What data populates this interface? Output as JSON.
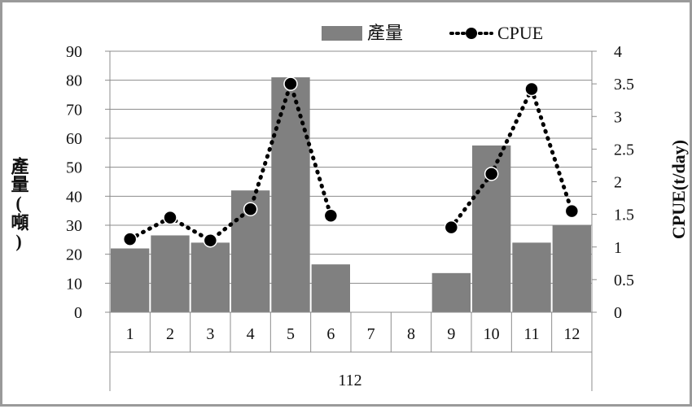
{
  "chart_data": {
    "type": "bar",
    "categories": [
      "1",
      "2",
      "3",
      "4",
      "5",
      "6",
      "7",
      "8",
      "9",
      "10",
      "11",
      "12"
    ],
    "group_label": "112",
    "series": [
      {
        "name": "產量",
        "type": "bar",
        "axis": "left",
        "color": "#808080",
        "values": [
          22,
          26.5,
          24,
          42,
          81,
          16.5,
          0,
          0,
          13.5,
          57.5,
          24,
          30
        ]
      },
      {
        "name": "CPUE",
        "type": "line",
        "axis": "right",
        "style": "dotted-with-markers",
        "color": "#000000",
        "values": [
          1.12,
          1.45,
          1.1,
          1.58,
          3.5,
          1.48,
          null,
          null,
          1.3,
          2.12,
          3.42,
          1.55
        ]
      }
    ],
    "ylabel": "產量(噸)",
    "y2label": "CPUE(t/day)",
    "ylim": [
      0,
      90
    ],
    "y2lim": [
      0,
      4
    ],
    "yticks": [
      "0",
      "10",
      "20",
      "30",
      "40",
      "50",
      "60",
      "70",
      "80",
      "90"
    ],
    "y2ticks": [
      "0",
      "0.5",
      "1",
      "1.5",
      "2",
      "2.5",
      "3",
      "3.5",
      "4"
    ],
    "grid": true,
    "legend": "top-right"
  }
}
